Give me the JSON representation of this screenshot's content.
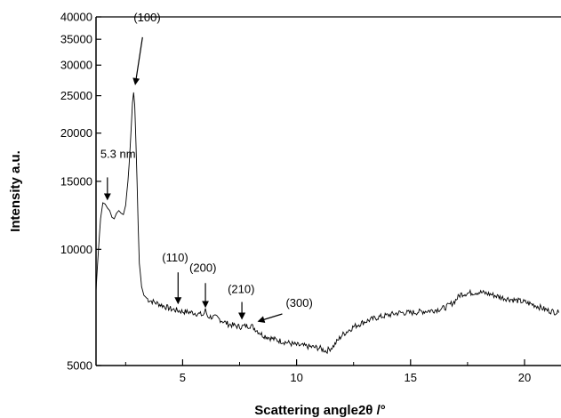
{
  "chart_data": {
    "type": "line",
    "title": "",
    "xlabel": "Scattering angle2θ /°",
    "ylabel": "Intensity a.u.",
    "xlim": [
      1.2,
      21.6
    ],
    "ylim": [
      5000,
      40000
    ],
    "y_scale": "log",
    "grid": false,
    "legend": "none",
    "x_ticks": [
      5,
      10,
      15,
      20
    ],
    "y_ticks": [
      5000,
      10000,
      15000,
      20000,
      25000,
      30000,
      35000,
      40000
    ],
    "x_tick_labels": [
      "5",
      "10",
      "15",
      "20"
    ],
    "y_tick_labels": [
      "5000",
      "10000",
      "15000",
      "20000",
      "25000",
      "30000",
      "35000",
      "40000"
    ],
    "line_color": "#000000",
    "series": [
      {
        "name": "",
        "x": [
          1.2,
          1.3,
          1.4,
          1.5,
          1.6,
          1.7,
          1.8,
          1.9,
          2.0,
          2.1,
          2.2,
          2.3,
          2.4,
          2.5,
          2.6,
          2.65,
          2.7,
          2.75,
          2.8,
          2.85,
          2.9,
          2.95,
          3.0,
          3.05,
          3.1,
          3.2,
          3.3,
          3.5,
          3.75,
          4.0,
          4.5,
          5.0,
          5.5,
          5.9,
          6.0,
          6.1,
          6.5,
          7.0,
          7.5,
          8.0,
          8.5,
          9.0,
          9.5,
          10.0,
          10.5,
          11.0,
          11.3,
          11.6,
          12.0,
          12.5,
          13.0,
          13.5,
          14.0,
          14.5,
          15.0,
          15.5,
          16.0,
          16.5,
          16.9,
          17.2,
          17.5,
          18.0,
          18.5,
          19.0,
          19.5,
          20.0,
          20.5,
          21.0,
          21.5
        ],
        "values": [
          7800,
          9800,
          12000,
          13200,
          13100,
          12800,
          12600,
          12100,
          12000,
          12400,
          12600,
          12400,
          12300,
          13000,
          15000,
          16500,
          18500,
          21000,
          24000,
          25500,
          23500,
          19000,
          15000,
          11500,
          9200,
          8000,
          7600,
          7400,
          7300,
          7200,
          7000,
          6900,
          6850,
          6750,
          6950,
          6700,
          6650,
          6400,
          6300,
          6350,
          6000,
          5850,
          5750,
          5650,
          5600,
          5550,
          5450,
          5600,
          6000,
          6300,
          6500,
          6650,
          6750,
          6850,
          6850,
          6900,
          6950,
          7050,
          7300,
          7650,
          7700,
          7750,
          7650,
          7500,
          7400,
          7300,
          7150,
          6950,
          6850
        ]
      }
    ],
    "annotations": [
      {
        "text": "5.3 nm",
        "x": 1.7,
        "y": 13100
      },
      {
        "text": "(100)",
        "x": 2.85,
        "y": 25500
      },
      {
        "text": "(110)",
        "x": 4.8,
        "y": 7050
      },
      {
        "text": "(200)",
        "x": 6.0,
        "y": 6900
      },
      {
        "text": "(210)",
        "x": 7.6,
        "y": 6500
      },
      {
        "text": "(300)",
        "x": 8.2,
        "y": 6450
      }
    ]
  }
}
